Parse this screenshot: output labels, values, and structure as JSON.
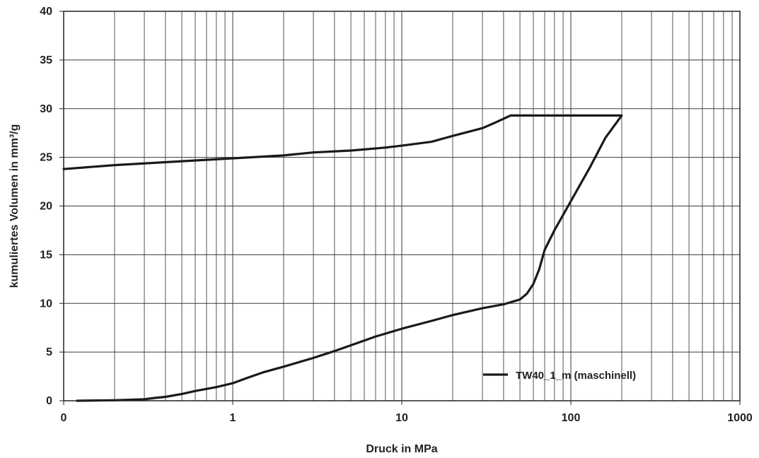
{
  "chart_data": {
    "type": "line",
    "xlabel": "Druck in MPa",
    "ylabel": "kumuliertes Volumen in mm³/g",
    "x_scale": "log",
    "xlim": [
      0.1,
      1000
    ],
    "ylim": [
      0,
      40
    ],
    "x_ticks": [
      {
        "value": 0.1,
        "label": "0"
      },
      {
        "value": 1,
        "label": "1"
      },
      {
        "value": 10,
        "label": "10"
      },
      {
        "value": 100,
        "label": "100"
      },
      {
        "value": 1000,
        "label": "1000"
      }
    ],
    "y_ticks": [
      {
        "value": 0,
        "label": "0"
      },
      {
        "value": 5,
        "label": "5"
      },
      {
        "value": 10,
        "label": "10"
      },
      {
        "value": 15,
        "label": "15"
      },
      {
        "value": 20,
        "label": "20"
      },
      {
        "value": 25,
        "label": "25"
      },
      {
        "value": 30,
        "label": "30"
      },
      {
        "value": 35,
        "label": "35"
      },
      {
        "value": 40,
        "label": "40"
      }
    ],
    "grid": true,
    "legend": {
      "position": "bottom-right"
    },
    "series": [
      {
        "name": "TW40_1_m (maschinell)",
        "color": "#1a1a1a",
        "x": [
          0.12,
          0.2,
          0.3,
          0.35,
          0.4,
          0.5,
          0.6,
          0.8,
          1.0,
          1.2,
          1.5,
          2,
          3,
          4,
          5,
          7,
          10,
          15,
          20,
          30,
          40,
          50,
          55,
          60,
          65,
          70,
          80,
          100,
          130,
          160,
          200,
          200,
          100,
          44,
          35,
          30,
          20,
          15,
          10,
          8,
          5,
          3,
          2,
          1,
          0.5,
          0.2,
          0.1
        ],
        "y": [
          0,
          0.05,
          0.15,
          0.3,
          0.4,
          0.7,
          1.0,
          1.4,
          1.8,
          2.3,
          2.9,
          3.5,
          4.4,
          5.1,
          5.7,
          6.6,
          7.4,
          8.2,
          8.8,
          9.5,
          9.9,
          10.4,
          11.0,
          12.0,
          13.5,
          15.5,
          17.5,
          20.5,
          24.0,
          27.0,
          29.3,
          29.3,
          29.3,
          29.3,
          28.5,
          28.0,
          27.2,
          26.6,
          26.2,
          26.0,
          25.7,
          25.5,
          25.2,
          24.9,
          24.6,
          24.2,
          23.8
        ]
      }
    ]
  }
}
